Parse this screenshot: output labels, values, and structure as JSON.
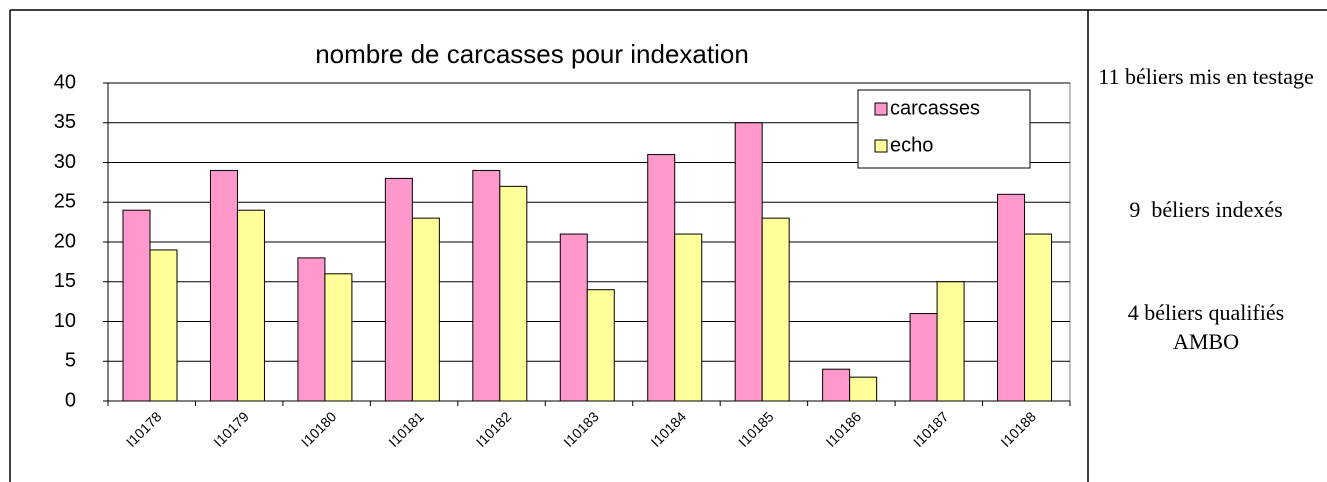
{
  "chart_data": {
    "type": "bar",
    "title": "nombre de carcasses pour indexation",
    "categories": [
      "I10178",
      "I10179",
      "I10180",
      "I10181",
      "I10182",
      "I10183",
      "I10184",
      "I10185",
      "I10186",
      "I10187",
      "I10188"
    ],
    "series": [
      {
        "name": "carcasses",
        "color": "#ff99cc",
        "values": [
          24,
          29,
          18,
          28,
          29,
          21,
          31,
          35,
          4,
          11,
          26
        ]
      },
      {
        "name": "echo",
        "color": "#ffff99",
        "values": [
          19,
          24,
          16,
          23,
          27,
          14,
          21,
          23,
          3,
          15,
          21
        ]
      }
    ],
    "ylim": [
      0,
      40
    ],
    "yticks": [
      0,
      5,
      10,
      15,
      20,
      25,
      30,
      35,
      40
    ],
    "grid": true,
    "legend": "top-right"
  },
  "notes": [
    "11 béliers mis en testage",
    "9  béliers indexés",
    "4 béliers qualifiés AMBO"
  ]
}
